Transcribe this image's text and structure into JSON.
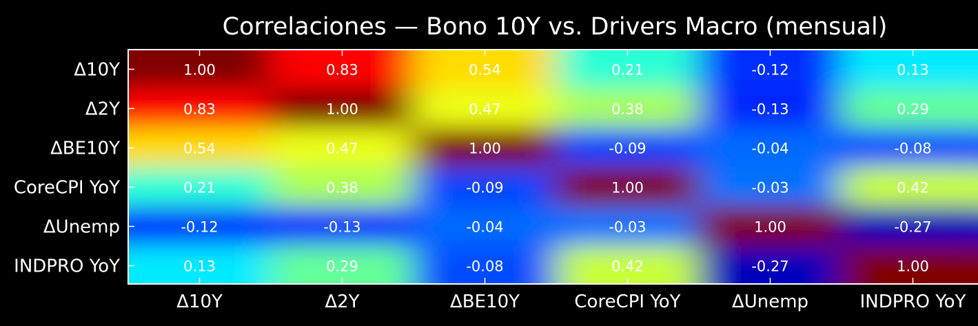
{
  "chart_data": {
    "type": "heatmap",
    "title": "Correlaciones — Bono 10Y vs. Drivers Macro (mensual)",
    "xlabel": "",
    "ylabel": "",
    "x_categories": [
      "Δ10Y",
      "Δ2Y",
      "ΔBE10Y",
      "CoreCPI YoY",
      "ΔUnemp",
      "INDPRO YoY"
    ],
    "y_categories": [
      "Δ10Y",
      "Δ2Y",
      "ΔBE10Y",
      "CoreCPI YoY",
      "ΔUnemp",
      "INDPRO YoY"
    ],
    "values": [
      [
        1.0,
        0.83,
        0.54,
        0.21,
        -0.12,
        0.13
      ],
      [
        0.83,
        1.0,
        0.47,
        0.38,
        -0.13,
        0.29
      ],
      [
        0.54,
        0.47,
        1.0,
        -0.09,
        -0.04,
        -0.08
      ],
      [
        0.21,
        0.38,
        -0.09,
        1.0,
        -0.03,
        0.42
      ],
      [
        -0.12,
        -0.13,
        -0.04,
        -0.03,
        1.0,
        -0.27
      ],
      [
        0.13,
        0.29,
        -0.08,
        0.42,
        -0.27,
        1.0
      ]
    ],
    "colormap": "jet",
    "interpolation": "smooth",
    "grid": false,
    "background": "#000000",
    "text_color": "#ffffff"
  }
}
